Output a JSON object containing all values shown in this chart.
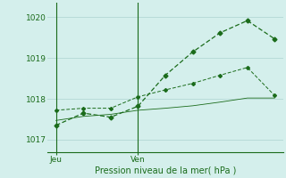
{
  "xlabel": "Pression niveau de la mer( hPa )",
  "ylim": [
    1016.7,
    1020.35
  ],
  "yticks": [
    1017,
    1018,
    1019,
    1020
  ],
  "bg_color": "#d4efec",
  "grid_color": "#b8dbd8",
  "line_color": "#1a6b1a",
  "line1_x": [
    0,
    1,
    2,
    3,
    4,
    5,
    6,
    7,
    8
  ],
  "line1_y": [
    1017.35,
    1017.65,
    1017.55,
    1017.82,
    1018.58,
    1019.15,
    1019.62,
    1019.92,
    1019.47
  ],
  "line2_x": [
    0,
    1,
    2,
    3,
    4,
    5,
    6,
    7,
    8
  ],
  "line2_y": [
    1017.72,
    1017.77,
    1017.77,
    1018.05,
    1018.22,
    1018.38,
    1018.58,
    1018.77,
    1018.08
  ],
  "line3_x": [
    0,
    1,
    2,
    3,
    4,
    5,
    6,
    7,
    8
  ],
  "line3_y": [
    1017.47,
    1017.57,
    1017.62,
    1017.72,
    1017.77,
    1017.83,
    1017.92,
    1018.02,
    1018.02
  ],
  "jeu_x": 0,
  "ven_x": 3,
  "xlim": [
    -0.3,
    8.3
  ],
  "jeu_label": "Jeu",
  "ven_label": "Ven"
}
